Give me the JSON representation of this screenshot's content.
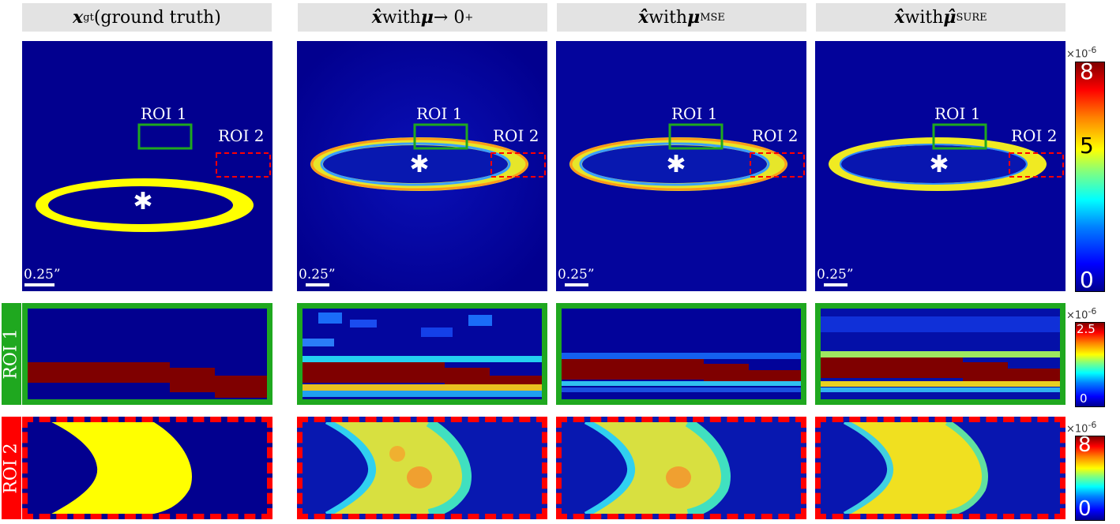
{
  "headers": [
    {
      "main": "x",
      "sub": "gt",
      "rest": " (ground truth)"
    },
    {
      "main": "x̂",
      "rest": " with ",
      "mu": "μ",
      "arrow": " → 0",
      "sup": "+"
    },
    {
      "main": "x̂",
      "rest": " with ",
      "mu": "μ",
      "sup": "MSE"
    },
    {
      "main": "x̂",
      "rest": " with ",
      "mu": "μ̂",
      "sup": "SURE"
    }
  ],
  "panel_labels": {
    "roi1": "ROI 1",
    "roi2": "ROI 2",
    "scale": "0.25”"
  },
  "row_labels": {
    "roi1": "ROI 1",
    "roi2": "ROI 2"
  },
  "colorbars": {
    "top": {
      "exponent": "×10",
      "exp_power": "-6",
      "ticks": [
        "8",
        "5",
        "0"
      ]
    },
    "middle": {
      "exponent": "×10",
      "exp_power": "-6",
      "ticks": [
        "2.5",
        "0"
      ]
    },
    "bottom": {
      "exponent": "×10",
      "exp_power": "-6",
      "ticks": [
        "8",
        "0"
      ]
    }
  },
  "colors": {
    "background": "#02008f",
    "ring": "#ffff00",
    "roi1_border": "#1fa81f",
    "roi2_border": "#ff0000",
    "dark_red": "#7f0000"
  }
}
